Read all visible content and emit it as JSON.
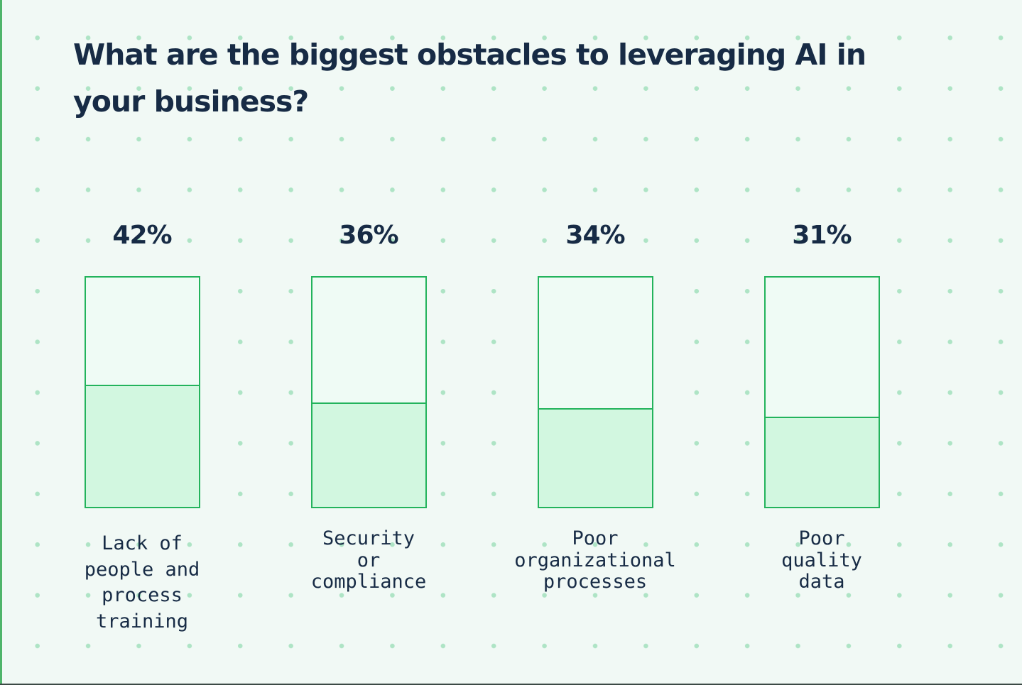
{
  "title": "What are the biggest obstacles to leveraging AI in your business?",
  "colors": {
    "background": "#f1f9f5",
    "dots": "#aee4c5",
    "bar_border": "#23b35c",
    "bar_empty": "#effbf5",
    "bar_fill": "#d2f7e0",
    "text": "#172b45"
  },
  "chart_data": {
    "type": "bar",
    "title": "What are the biggest obstacles to leveraging AI in your business?",
    "categories": [
      "Lack of people and process training",
      "Security or compliance",
      "Poor organizational processes",
      "Poor quality data"
    ],
    "values": [
      42,
      36,
      34,
      31
    ],
    "value_labels": [
      "42%",
      "36%",
      "34%",
      "31%"
    ],
    "category_lines": [
      [
        "Lack of",
        "people and",
        "process",
        "training"
      ],
      [
        "Security",
        "or",
        "compliance"
      ],
      [
        "Poor",
        "organizational",
        "processes"
      ],
      [
        "Poor",
        "quality",
        "data"
      ]
    ],
    "ylim": [
      0,
      80
    ],
    "unit": "%",
    "xlabel": "",
    "ylabel": ""
  }
}
